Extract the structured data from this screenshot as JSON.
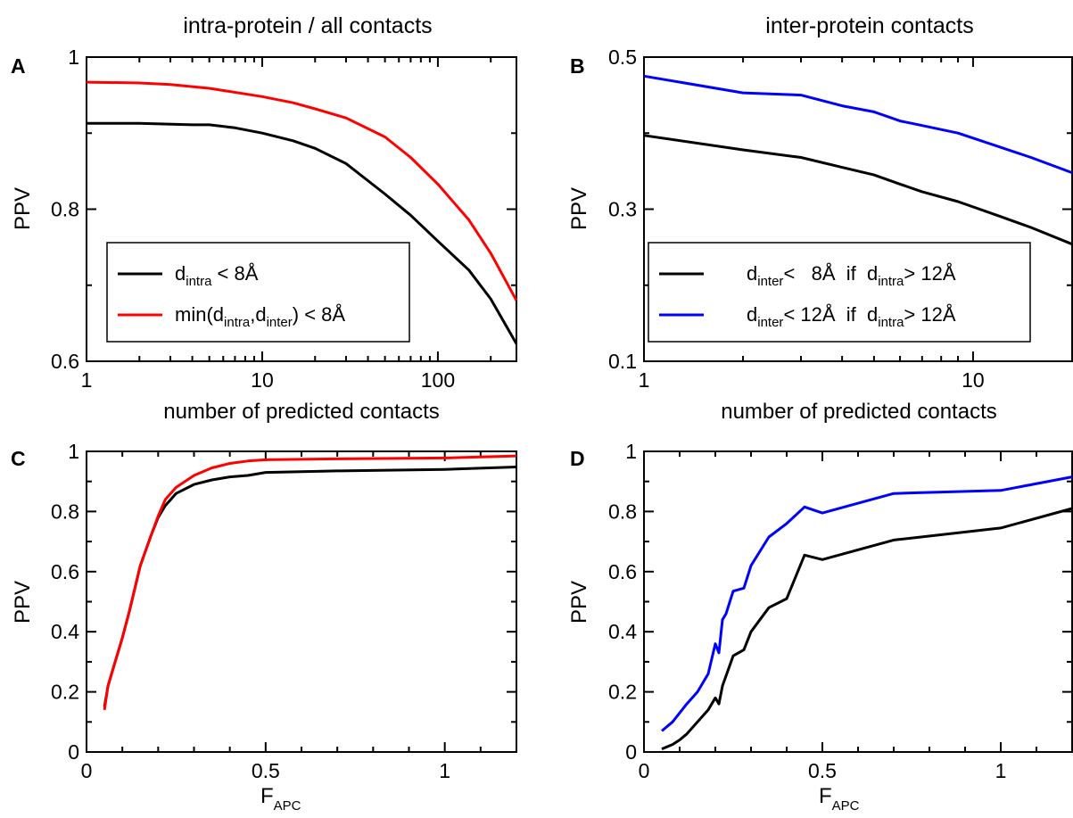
{
  "titles": {
    "left": "intra-protein / all contacts",
    "right": "inter-protein contacts"
  },
  "chart_data": [
    {
      "panel": "A",
      "type": "line",
      "xlabel": "number of predicted contacts",
      "ylabel": "PPV",
      "xscale": "log",
      "xlim": [
        1,
        280
      ],
      "ylim": [
        0.6,
        1.0
      ],
      "xticks": [
        1,
        10,
        100
      ],
      "xtick_labels": [
        "1",
        "10",
        "100"
      ],
      "yticks": [
        0.6,
        0.8,
        1.0
      ],
      "ytick_labels": [
        "0.6",
        "0.8",
        "1"
      ],
      "legend_position": "bottom-left",
      "series": [
        {
          "name": "d_intra < 8Å",
          "legend": {
            "main": "d",
            "sub": "intra",
            "rest": " < 8Å"
          },
          "color": "#000000",
          "x": [
            1,
            2,
            4,
            5,
            7,
            10,
            15,
            20,
            30,
            50,
            70,
            100,
            150,
            200,
            280
          ],
          "y": [
            0.913,
            0.913,
            0.911,
            0.911,
            0.907,
            0.9,
            0.89,
            0.88,
            0.86,
            0.82,
            0.792,
            0.758,
            0.72,
            0.682,
            0.623
          ]
        },
        {
          "name": "min(d_intra,d_inter) < 8Å",
          "legend": {
            "main": "min(d",
            "sub": "intra",
            "mid": ",d",
            "sub2": "inter",
            "rest": ") < 8Å"
          },
          "color": "#ff0000",
          "x": [
            1,
            2,
            3,
            5,
            10,
            15,
            20,
            30,
            50,
            70,
            100,
            150,
            200,
            280
          ],
          "y": [
            0.967,
            0.966,
            0.964,
            0.959,
            0.948,
            0.94,
            0.932,
            0.92,
            0.895,
            0.868,
            0.833,
            0.786,
            0.742,
            0.68
          ]
        }
      ]
    },
    {
      "panel": "B",
      "type": "line",
      "xlabel": "number of predicted contacts",
      "ylabel": "PPV",
      "xscale": "log",
      "xlim": [
        1,
        20
      ],
      "ylim": [
        0.1,
        0.5
      ],
      "xticks": [
        1,
        10
      ],
      "xtick_labels": [
        "1",
        "10"
      ],
      "yticks": [
        0.1,
        0.3,
        0.5
      ],
      "ytick_labels": [
        "0.1",
        "0.3",
        "0.5"
      ],
      "legend_position": "bottom",
      "series": [
        {
          "name": "d_inter < 8Å if d_intra > 12Å",
          "legend": {
            "main": "d",
            "sub": "inter",
            "mid": "<   8Å  if  d",
            "sub2": "intra",
            "rest": "> 12Å"
          },
          "color": "#000000",
          "x": [
            1,
            2,
            3,
            4,
            5,
            6,
            7,
            9,
            12,
            15,
            20
          ],
          "y": [
            0.397,
            0.378,
            0.368,
            0.355,
            0.345,
            0.333,
            0.323,
            0.31,
            0.291,
            0.276,
            0.254
          ]
        },
        {
          "name": "d_inter < 12Å if d_intra > 12Å",
          "legend": {
            "main": "d",
            "sub": "inter",
            "mid": "< 12Å  if  d",
            "sub2": "intra",
            "rest": "> 12Å"
          },
          "color": "#0000ff",
          "x": [
            1,
            2,
            3,
            4,
            5,
            6,
            7,
            9,
            12,
            15,
            20
          ],
          "y": [
            0.475,
            0.453,
            0.45,
            0.436,
            0.428,
            0.416,
            0.41,
            0.4,
            0.382,
            0.368,
            0.348
          ]
        }
      ]
    },
    {
      "panel": "C",
      "type": "line",
      "xlabel": "F",
      "xlabel_sub": "APC",
      "ylabel": "PPV",
      "xlim": [
        0,
        1.2
      ],
      "ylim": [
        0,
        1
      ],
      "xticks": [
        0,
        0.5,
        1
      ],
      "xtick_labels": [
        "0",
        "0.5",
        "1"
      ],
      "yticks": [
        0,
        0.2,
        0.4,
        0.6,
        0.8,
        1
      ],
      "ytick_labels": [
        "0",
        "0.2",
        "0.4",
        "0.6",
        "0.8",
        "1"
      ],
      "series": [
        {
          "color": "#000000",
          "x": [
            0.05,
            0.06,
            0.08,
            0.1,
            0.12,
            0.15,
            0.18,
            0.2,
            0.22,
            0.25,
            0.3,
            0.35,
            0.4,
            0.45,
            0.5,
            0.7,
            1.0,
            1.2
          ],
          "y": [
            0.15,
            0.22,
            0.3,
            0.38,
            0.47,
            0.62,
            0.72,
            0.78,
            0.82,
            0.86,
            0.89,
            0.905,
            0.915,
            0.92,
            0.93,
            0.935,
            0.94,
            0.948
          ]
        },
        {
          "color": "#ff0000",
          "x": [
            0.05,
            0.06,
            0.08,
            0.1,
            0.12,
            0.15,
            0.18,
            0.2,
            0.22,
            0.25,
            0.3,
            0.35,
            0.4,
            0.45,
            0.5,
            0.7,
            1.0,
            1.2
          ],
          "y": [
            0.14,
            0.22,
            0.3,
            0.38,
            0.47,
            0.62,
            0.72,
            0.785,
            0.84,
            0.88,
            0.92,
            0.945,
            0.96,
            0.968,
            0.972,
            0.975,
            0.978,
            0.985
          ]
        }
      ]
    },
    {
      "panel": "D",
      "type": "line",
      "xlabel": "F",
      "xlabel_sub": "APC",
      "ylabel": "PPV",
      "xlim": [
        0,
        1.2
      ],
      "ylim": [
        0,
        1
      ],
      "xticks": [
        0,
        0.5,
        1
      ],
      "xtick_labels": [
        "0",
        "0.5",
        "1"
      ],
      "yticks": [
        0,
        0.2,
        0.4,
        0.6,
        0.8,
        1
      ],
      "ytick_labels": [
        "0",
        "0.2",
        "0.4",
        "0.6",
        "0.8",
        "1"
      ],
      "series": [
        {
          "color": "#000000",
          "x": [
            0.05,
            0.08,
            0.1,
            0.12,
            0.15,
            0.18,
            0.2,
            0.21,
            0.22,
            0.25,
            0.28,
            0.3,
            0.35,
            0.4,
            0.45,
            0.5,
            0.7,
            1.0,
            1.2
          ],
          "y": [
            0.01,
            0.025,
            0.04,
            0.06,
            0.1,
            0.14,
            0.18,
            0.16,
            0.22,
            0.32,
            0.34,
            0.4,
            0.48,
            0.51,
            0.655,
            0.64,
            0.705,
            0.745,
            0.81
          ]
        },
        {
          "color": "#0000ff",
          "x": [
            0.05,
            0.08,
            0.1,
            0.12,
            0.15,
            0.18,
            0.2,
            0.21,
            0.22,
            0.23,
            0.25,
            0.28,
            0.3,
            0.35,
            0.4,
            0.45,
            0.5,
            0.7,
            1.0,
            1.2
          ],
          "y": [
            0.07,
            0.1,
            0.13,
            0.16,
            0.2,
            0.26,
            0.36,
            0.33,
            0.44,
            0.46,
            0.535,
            0.545,
            0.62,
            0.715,
            0.76,
            0.815,
            0.795,
            0.86,
            0.87,
            0.915
          ]
        }
      ]
    }
  ]
}
